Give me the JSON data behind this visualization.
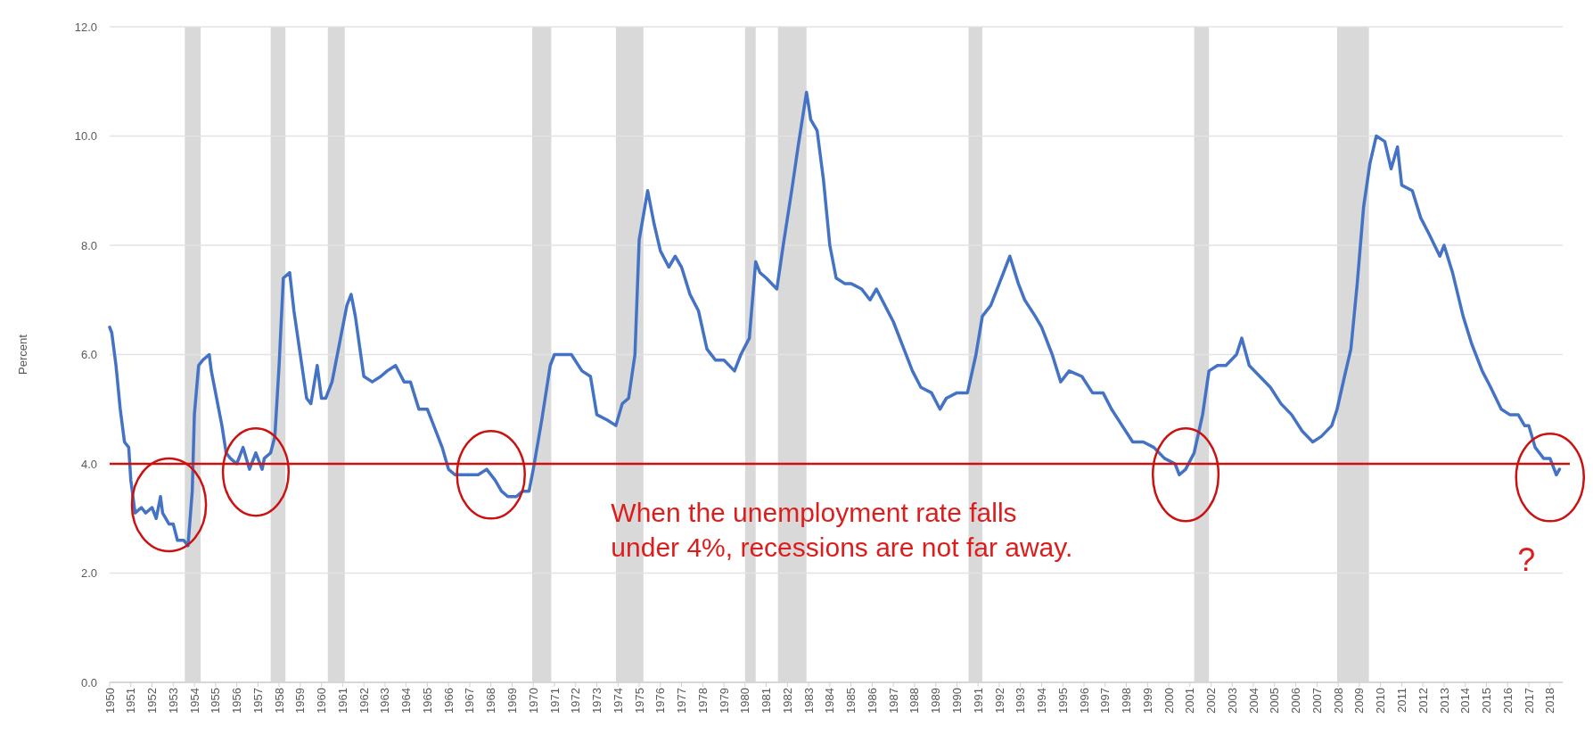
{
  "chart_data": {
    "type": "line",
    "ylabel": "Percent",
    "x": [
      1950.0,
      1950.1,
      1950.3,
      1950.5,
      1950.7,
      1950.9,
      1951.0,
      1951.2,
      1951.5,
      1951.7,
      1952.0,
      1952.2,
      1952.4,
      1952.5,
      1952.8,
      1953.0,
      1953.2,
      1953.5,
      1953.7,
      1953.9,
      1954.0,
      1954.2,
      1954.4,
      1954.7,
      1954.8,
      1955.0,
      1955.3,
      1955.5,
      1955.7,
      1956.0,
      1956.3,
      1956.6,
      1956.9,
      1957.2,
      1957.3,
      1957.6,
      1957.8,
      1958.0,
      1958.2,
      1958.5,
      1958.7,
      1959.0,
      1959.3,
      1959.5,
      1959.8,
      1960.0,
      1960.2,
      1960.5,
      1960.9,
      1961.2,
      1961.4,
      1961.6,
      1962.0,
      1962.4,
      1962.8,
      1963.1,
      1963.5,
      1963.9,
      1964.2,
      1964.6,
      1965.0,
      1965.3,
      1965.7,
      1966.0,
      1966.3,
      1966.7,
      1967.0,
      1967.4,
      1967.8,
      1968.2,
      1968.5,
      1968.8,
      1969.2,
      1969.5,
      1969.8,
      1970.0,
      1970.4,
      1970.8,
      1971.0,
      1971.5,
      1971.8,
      1972.3,
      1972.7,
      1973.0,
      1973.5,
      1973.9,
      1974.2,
      1974.5,
      1974.8,
      1975.0,
      1975.4,
      1975.7,
      1976.0,
      1976.4,
      1976.7,
      1977.0,
      1977.4,
      1977.8,
      1978.2,
      1978.6,
      1979.0,
      1979.5,
      1979.8,
      1980.2,
      1980.5,
      1980.7,
      1981.0,
      1981.5,
      1981.8,
      1982.2,
      1982.5,
      1982.9,
      1983.1,
      1983.4,
      1983.7,
      1984.0,
      1984.3,
      1984.7,
      1985.0,
      1985.5,
      1985.9,
      1986.2,
      1986.6,
      1987.0,
      1987.5,
      1987.9,
      1988.3,
      1988.8,
      1989.2,
      1989.5,
      1990.0,
      1990.5,
      1990.9,
      1991.2,
      1991.6,
      1992.0,
      1992.5,
      1992.9,
      1993.2,
      1993.7,
      1994.0,
      1994.5,
      1994.9,
      1995.3,
      1995.9,
      1996.4,
      1996.9,
      1997.3,
      1997.8,
      1998.3,
      1998.8,
      1999.3,
      1999.8,
      2000.3,
      2000.5,
      2000.8,
      2001.2,
      2001.6,
      2001.9,
      2002.3,
      2002.7,
      2003.2,
      2003.45,
      2003.8,
      2004.3,
      2004.8,
      2005.3,
      2005.8,
      2006.3,
      2006.8,
      2007.2,
      2007.7,
      2007.95,
      2008.3,
      2008.6,
      2008.9,
      2009.2,
      2009.5,
      2009.8,
      2010.2,
      2010.5,
      2010.8,
      2011.0,
      2011.5,
      2011.9,
      2012.3,
      2012.8,
      2013.0,
      2013.4,
      2013.9,
      2014.3,
      2014.8,
      2015.2,
      2015.7,
      2016.1,
      2016.5,
      2016.8,
      2017.0,
      2017.3,
      2017.7,
      2018.0,
      2018.3,
      2018.45
    ],
    "series": [
      {
        "color": "#4472c4",
        "values": [
          6.5,
          6.4,
          5.8,
          5.0,
          4.4,
          4.3,
          3.7,
          3.1,
          3.2,
          3.1,
          3.2,
          3.0,
          3.4,
          3.1,
          2.9,
          2.9,
          2.6,
          2.6,
          2.5,
          3.5,
          4.9,
          5.8,
          5.9,
          6.0,
          5.7,
          5.3,
          4.7,
          4.2,
          4.1,
          4.0,
          4.3,
          3.9,
          4.2,
          3.9,
          4.1,
          4.2,
          4.5,
          5.8,
          7.4,
          7.5,
          6.8,
          6.0,
          5.2,
          5.1,
          5.8,
          5.2,
          5.2,
          5.5,
          6.3,
          6.9,
          7.1,
          6.7,
          5.6,
          5.5,
          5.6,
          5.7,
          5.8,
          5.5,
          5.5,
          5.0,
          5.0,
          4.7,
          4.3,
          3.9,
          3.8,
          3.8,
          3.8,
          3.8,
          3.9,
          3.7,
          3.5,
          3.4,
          3.4,
          3.5,
          3.5,
          3.9,
          4.8,
          5.8,
          6.0,
          6.0,
          6.0,
          5.7,
          5.6,
          4.9,
          4.8,
          4.7,
          5.1,
          5.2,
          6.0,
          8.1,
          9.0,
          8.4,
          7.9,
          7.6,
          7.8,
          7.6,
          7.1,
          6.8,
          6.1,
          5.9,
          5.9,
          5.7,
          6.0,
          6.3,
          7.7,
          7.5,
          7.4,
          7.2,
          8.0,
          9.0,
          9.8,
          10.8,
          10.3,
          10.1,
          9.2,
          8.0,
          7.4,
          7.3,
          7.3,
          7.2,
          7.0,
          7.2,
          6.9,
          6.6,
          6.1,
          5.7,
          5.4,
          5.3,
          5.0,
          5.2,
          5.3,
          5.3,
          6.0,
          6.7,
          6.9,
          7.3,
          7.8,
          7.3,
          7.0,
          6.7,
          6.5,
          6.0,
          5.5,
          5.7,
          5.6,
          5.3,
          5.3,
          5.0,
          4.7,
          4.4,
          4.4,
          4.3,
          4.1,
          4.0,
          3.8,
          3.9,
          4.2,
          4.9,
          5.7,
          5.8,
          5.8,
          6.0,
          6.3,
          5.8,
          5.6,
          5.4,
          5.1,
          4.9,
          4.6,
          4.4,
          4.5,
          4.7,
          5.0,
          5.6,
          6.1,
          7.3,
          8.7,
          9.5,
          10.0,
          9.9,
          9.4,
          9.8,
          9.1,
          9.0,
          8.5,
          8.2,
          7.8,
          8.0,
          7.5,
          6.7,
          6.2,
          5.7,
          5.4,
          5.0,
          4.9,
          4.9,
          4.7,
          4.7,
          4.3,
          4.1,
          4.1,
          3.8,
          3.9
        ]
      }
    ],
    "xlim": [
      1950,
      2018.6
    ],
    "xticks": [
      1950,
      1951,
      1952,
      1953,
      1954,
      1955,
      1956,
      1957,
      1958,
      1959,
      1960,
      1961,
      1962,
      1963,
      1964,
      1965,
      1966,
      1967,
      1968,
      1969,
      1970,
      1971,
      1972,
      1973,
      1974,
      1975,
      1976,
      1977,
      1978,
      1979,
      1980,
      1981,
      1982,
      1983,
      1984,
      1985,
      1986,
      1987,
      1988,
      1989,
      1990,
      1991,
      1992,
      1993,
      1994,
      1995,
      1996,
      1997,
      1998,
      1999,
      2000,
      2001,
      2002,
      2003,
      2004,
      2005,
      2006,
      2007,
      2008,
      2009,
      2010,
      2011,
      2012,
      2013,
      2014,
      2015,
      2016,
      2017,
      2018
    ],
    "ylim": [
      0,
      12
    ],
    "yticks": [
      {
        "value": 0,
        "label": "0.0"
      },
      {
        "value": 2,
        "label": "2.0"
      },
      {
        "value": 4,
        "label": "4.0"
      },
      {
        "value": 6,
        "label": "6.0"
      },
      {
        "value": 8,
        "label": "8.0"
      },
      {
        "value": 10,
        "label": "10.0"
      },
      {
        "value": 12,
        "label": "12.0"
      }
    ],
    "grid": "y",
    "marker": "none",
    "line_style": "solid",
    "ref_lines": [
      {
        "axis": "y",
        "value": 4,
        "color": "#cc1111"
      }
    ],
    "bands": [
      {
        "axis": "x",
        "from": 1953.55,
        "to": 1954.3,
        "color": "#d9d9d9"
      },
      {
        "axis": "x",
        "from": 1957.6,
        "to": 1958.3,
        "color": "#d9d9d9"
      },
      {
        "axis": "x",
        "from": 1960.3,
        "to": 1961.1,
        "color": "#d9d9d9"
      },
      {
        "axis": "x",
        "from": 1969.95,
        "to": 1970.85,
        "color": "#d9d9d9"
      },
      {
        "axis": "x",
        "from": 1973.9,
        "to": 1975.2,
        "color": "#d9d9d9"
      },
      {
        "axis": "x",
        "from": 1980.0,
        "to": 1980.5,
        "color": "#d9d9d9"
      },
      {
        "axis": "x",
        "from": 1981.55,
        "to": 1982.9,
        "color": "#d9d9d9"
      },
      {
        "axis": "x",
        "from": 1990.55,
        "to": 1991.2,
        "color": "#d9d9d9"
      },
      {
        "axis": "x",
        "from": 2001.2,
        "to": 2001.9,
        "color": "#d9d9d9"
      },
      {
        "axis": "x",
        "from": 2007.95,
        "to": 2009.45,
        "color": "#d9d9d9"
      }
    ],
    "annotations": [
      "When the unemployment rate falls under 4%, recessions are not far away.",
      "?"
    ]
  }
}
